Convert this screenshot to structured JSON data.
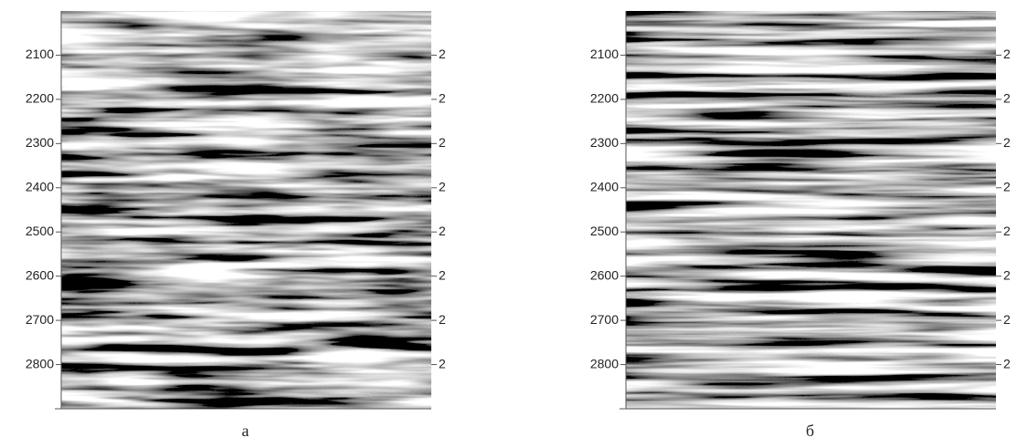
{
  "chart_data": [
    {
      "type": "image",
      "caption": "а",
      "ylim": [
        2000,
        2900
      ],
      "yticks": [
        2100,
        2200,
        2300,
        2400,
        2500,
        2600,
        2700,
        2800
      ],
      "y2ticks": [
        {
          "value": 2100,
          "label": "2"
        },
        {
          "value": 2200,
          "label": "2"
        },
        {
          "value": 2300,
          "label": "2"
        },
        {
          "value": 2400,
          "label": "2"
        },
        {
          "value": 2500,
          "label": "2"
        },
        {
          "value": 2600,
          "label": "2"
        },
        {
          "value": 2700,
          "label": "2"
        },
        {
          "value": 2800,
          "label": "2"
        }
      ]
    },
    {
      "type": "image",
      "caption": "б",
      "ylim": [
        2000,
        2900
      ],
      "yticks": [
        2100,
        2200,
        2300,
        2400,
        2500,
        2600,
        2700,
        2800
      ],
      "y2ticks": [
        {
          "value": 2100,
          "label": "2"
        },
        {
          "value": 2200,
          "label": "2"
        },
        {
          "value": 2300,
          "label": "2"
        },
        {
          "value": 2400,
          "label": "2"
        },
        {
          "value": 2500,
          "label": "2"
        },
        {
          "value": 2600,
          "label": "2"
        },
        {
          "value": 2700,
          "label": "2"
        },
        {
          "value": 2800,
          "label": "2"
        }
      ]
    }
  ]
}
